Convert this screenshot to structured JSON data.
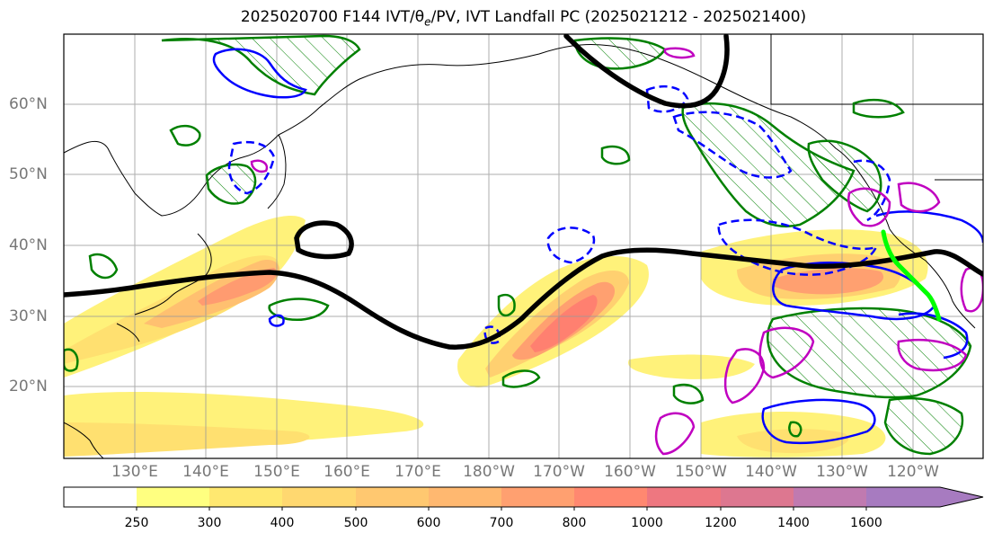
{
  "title": {
    "text": "2025020700 F144 IVT/θe/PV, IVT Landfall PC (2025021212 - 2025021400)"
  },
  "latitude_labels": [
    "60°N",
    "50°N",
    "40°N",
    "30°N",
    "20°N"
  ],
  "longitude_labels": [
    "130°E",
    "140°E",
    "150°E",
    "160°E",
    "170°E",
    "180°W",
    "170°W",
    "160°W",
    "150°W",
    "140°W",
    "130°W",
    "120°W"
  ],
  "colorbar": {
    "ticks": [
      "250",
      "300",
      "400",
      "500",
      "600",
      "700",
      "800",
      "1000",
      "1200",
      "1400",
      "1600"
    ],
    "colors": [
      "#ffffff",
      "#ffff80",
      "#ffe870",
      "#ffd870",
      "#ffc870",
      "#ffb870",
      "#ffa070",
      "#ff8870",
      "#ee7780",
      "#dd7790",
      "#c07ab0",
      "#a77bc0"
    ]
  },
  "legend_colors": {
    "ivt_fill_low": "#fff27a",
    "ivt_fill_mid": "#ffc070",
    "ivt_fill_high": "#ff8070",
    "pv_contour": "#000000",
    "green_contour": "#008000",
    "blue_contour": "#0000ff",
    "magenta_contour": "#c000c0",
    "landfall_line": "#00ff00"
  }
}
